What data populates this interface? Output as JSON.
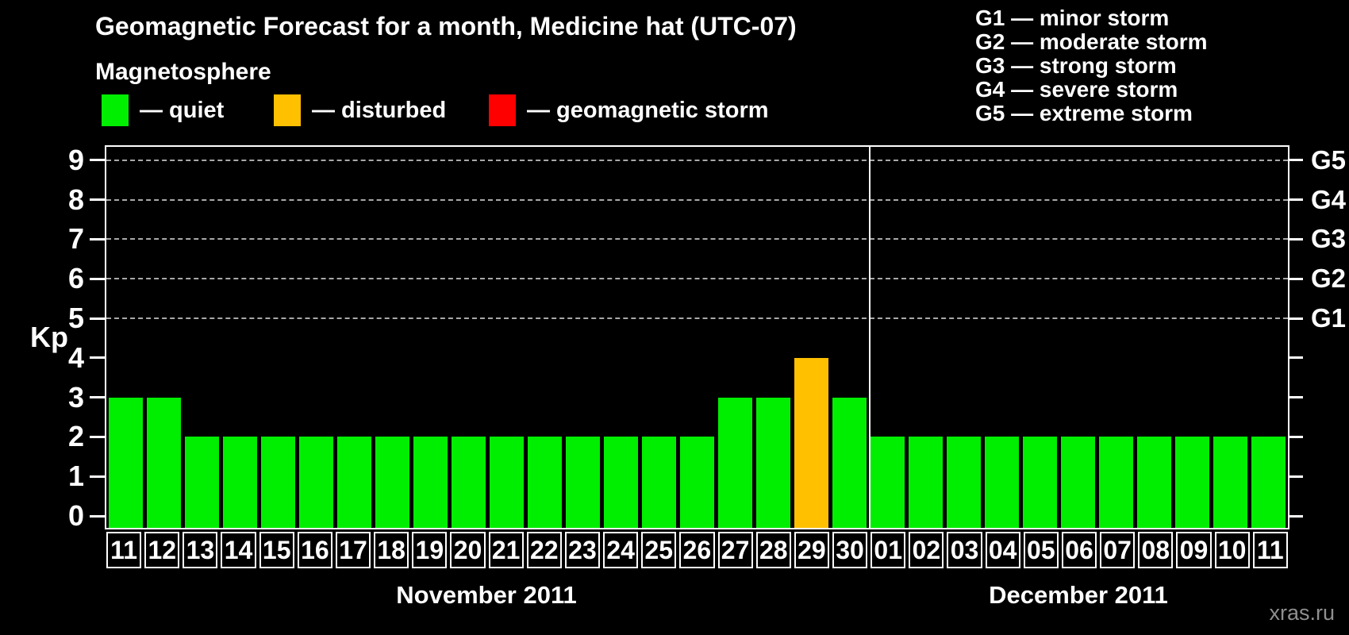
{
  "header": {
    "title": "Geomagnetic Forecast for a month, Medicine hat (UTC-07)"
  },
  "magnetosphere_legend": {
    "title": "Magnetosphere",
    "items": [
      {
        "status": "quiet",
        "label": "— quiet",
        "color": "#00ee00"
      },
      {
        "status": "disturbed",
        "label": "— disturbed",
        "color": "#ffc000"
      },
      {
        "status": "storm",
        "label": "— geomagnetic storm",
        "color": "#ff0000"
      }
    ]
  },
  "g_scale_legend": {
    "items": [
      "G1 — minor storm",
      "G2 — moderate storm",
      "G3 — strong storm",
      "G4 — severe storm",
      "G5 — extreme storm"
    ]
  },
  "watermark": "xras.ru",
  "chart_data": {
    "type": "bar",
    "title": "Geomagnetic Forecast for a month, Medicine hat (UTC-07)",
    "ylabel": "Kp",
    "y_ticks": [
      0,
      1,
      2,
      3,
      4,
      5,
      6,
      7,
      8,
      9
    ],
    "ylim": [
      0,
      9.4
    ],
    "grid_levels_kp": [
      5,
      6,
      7,
      8,
      9
    ],
    "grid_style": "dashed",
    "legend_position": "top",
    "right_axis_labels": [
      {
        "kp": 5,
        "label": "G1"
      },
      {
        "kp": 6,
        "label": "G2"
      },
      {
        "kp": 7,
        "label": "G3"
      },
      {
        "kp": 8,
        "label": "G4"
      },
      {
        "kp": 9,
        "label": "G5"
      }
    ],
    "status_colors": {
      "quiet": "#00ee00",
      "disturbed": "#ffc000",
      "storm": "#ff0000"
    },
    "months": [
      {
        "name": "November 2011",
        "days": [
          {
            "day": "11",
            "kp": 3,
            "status": "quiet"
          },
          {
            "day": "12",
            "kp": 3,
            "status": "quiet"
          },
          {
            "day": "13",
            "kp": 2,
            "status": "quiet"
          },
          {
            "day": "14",
            "kp": 2,
            "status": "quiet"
          },
          {
            "day": "15",
            "kp": 2,
            "status": "quiet"
          },
          {
            "day": "16",
            "kp": 2,
            "status": "quiet"
          },
          {
            "day": "17",
            "kp": 2,
            "status": "quiet"
          },
          {
            "day": "18",
            "kp": 2,
            "status": "quiet"
          },
          {
            "day": "19",
            "kp": 2,
            "status": "quiet"
          },
          {
            "day": "20",
            "kp": 2,
            "status": "quiet"
          },
          {
            "day": "21",
            "kp": 2,
            "status": "quiet"
          },
          {
            "day": "22",
            "kp": 2,
            "status": "quiet"
          },
          {
            "day": "23",
            "kp": 2,
            "status": "quiet"
          },
          {
            "day": "24",
            "kp": 2,
            "status": "quiet"
          },
          {
            "day": "25",
            "kp": 2,
            "status": "quiet"
          },
          {
            "day": "26",
            "kp": 2,
            "status": "quiet"
          },
          {
            "day": "27",
            "kp": 3,
            "status": "quiet"
          },
          {
            "day": "28",
            "kp": 3,
            "status": "quiet"
          },
          {
            "day": "29",
            "kp": 4,
            "status": "disturbed"
          },
          {
            "day": "30",
            "kp": 3,
            "status": "quiet"
          }
        ]
      },
      {
        "name": "December 2011",
        "days": [
          {
            "day": "01",
            "kp": 2,
            "status": "quiet"
          },
          {
            "day": "02",
            "kp": 2,
            "status": "quiet"
          },
          {
            "day": "03",
            "kp": 2,
            "status": "quiet"
          },
          {
            "day": "04",
            "kp": 2,
            "status": "quiet"
          },
          {
            "day": "05",
            "kp": 2,
            "status": "quiet"
          },
          {
            "day": "06",
            "kp": 2,
            "status": "quiet"
          },
          {
            "day": "07",
            "kp": 2,
            "status": "quiet"
          },
          {
            "day": "08",
            "kp": 2,
            "status": "quiet"
          },
          {
            "day": "09",
            "kp": 2,
            "status": "quiet"
          },
          {
            "day": "10",
            "kp": 2,
            "status": "quiet"
          },
          {
            "day": "11",
            "kp": 2,
            "status": "quiet"
          }
        ]
      }
    ]
  }
}
